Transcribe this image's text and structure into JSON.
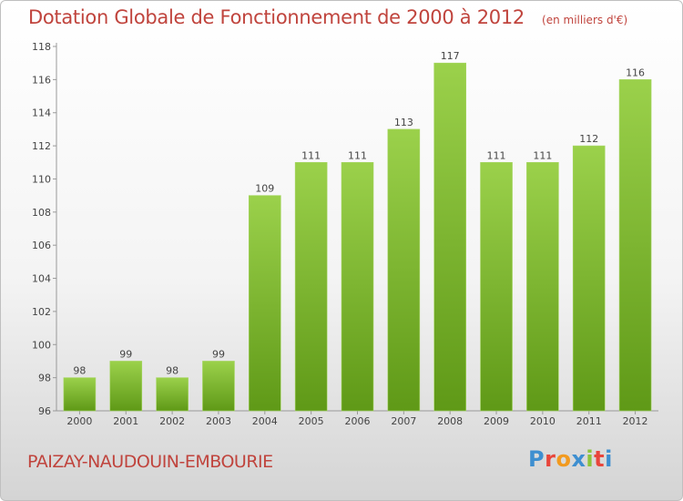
{
  "chart_data": {
    "type": "bar",
    "title": "Dotation Globale de Fonctionnement de 2000 à 2012",
    "subtitle": "(en milliers d'€)",
    "categories": [
      "2000",
      "2001",
      "2002",
      "2003",
      "2004",
      "2005",
      "2006",
      "2007",
      "2008",
      "2009",
      "2010",
      "2011",
      "2012"
    ],
    "values": [
      98,
      99,
      98,
      99,
      109,
      111,
      111,
      113,
      117,
      111,
      111,
      112,
      116
    ],
    "ylim": [
      96,
      118
    ],
    "yticks": [
      96,
      98,
      100,
      102,
      104,
      106,
      108,
      110,
      112,
      114,
      116,
      118
    ],
    "xlabel": "",
    "ylabel": "",
    "grid": false,
    "bar_color": "#7fb52f"
  },
  "footer": {
    "commune": "PAIZAY-NAUDOUIN-EMBOURIE",
    "logo_letters": [
      "P",
      "r",
      "o",
      "x",
      "i",
      "t",
      "i"
    ],
    "logo_colors": [
      "#3e8fd0",
      "#e8463c",
      "#f29a1f",
      "#3e8fd0",
      "#8cc43a",
      "#e8463c",
      "#3e8fd0"
    ]
  }
}
